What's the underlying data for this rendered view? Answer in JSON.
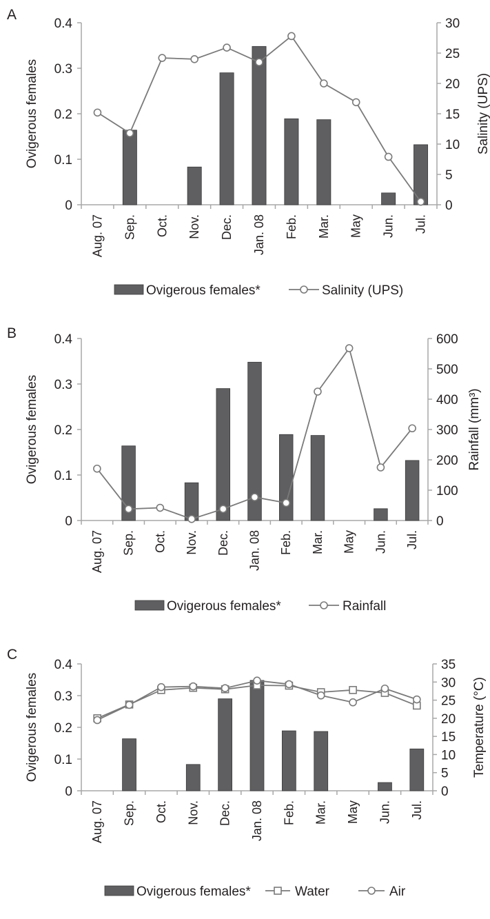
{
  "chart_data": [
    {
      "panel_label": "A",
      "type": "bar+line",
      "categories": [
        "Aug. 07",
        "Sep.",
        "Oct.",
        "Nov.",
        "Dec.",
        "Jan. 08",
        "Feb.",
        "Mar.",
        "May",
        "Jun.",
        "Jul."
      ],
      "ylabel": "Ovigerous females",
      "y2label": "Salinity (UPS)",
      "ylim": [
        0,
        0.4
      ],
      "yticks": [
        "0",
        "0.1",
        "0.2",
        "0.3",
        "0.4"
      ],
      "y2lim": [
        0,
        30
      ],
      "y2ticks": [
        "0",
        "5",
        "10",
        "15",
        "20",
        "25",
        "30"
      ],
      "bar_series": {
        "name": "Ovigerous females*",
        "values": [
          0,
          0.164,
          0,
          0.083,
          0.29,
          0.348,
          0.189,
          0.187,
          0,
          0.026,
          0.132
        ]
      },
      "line_series": [
        {
          "name": "Salinity (UPS)",
          "marker": "circle",
          "values": [
            15.2,
            11.8,
            24.2,
            24.0,
            25.9,
            23.5,
            27.8,
            20.0,
            16.9,
            7.9,
            0.5
          ]
        }
      ],
      "legend_position": "bottom"
    },
    {
      "panel_label": "B",
      "type": "bar+line",
      "categories": [
        "Aug. 07",
        "Sep.",
        "Oct.",
        "Nov.",
        "Dec.",
        "Jan. 08",
        "Feb.",
        "Mar.",
        "May",
        "Jun.",
        "Jul."
      ],
      "ylabel": "Ovigerous females",
      "y2label": "Rainfall (mm³)",
      "ylim": [
        0,
        0.4
      ],
      "yticks": [
        "0",
        "0.1",
        "0.2",
        "0.3",
        "0.4"
      ],
      "y2lim": [
        0,
        600
      ],
      "y2ticks": [
        "0",
        "100",
        "200",
        "300",
        "400",
        "500",
        "600"
      ],
      "bar_series": {
        "name": "Ovigerous females*",
        "values": [
          0,
          0.164,
          0,
          0.083,
          0.29,
          0.348,
          0.189,
          0.187,
          0,
          0.026,
          0.132
        ]
      },
      "line_series": [
        {
          "name": "Rainfall",
          "marker": "circle",
          "values": [
            171,
            38,
            42,
            5,
            38,
            77,
            58,
            425,
            568,
            175,
            304
          ]
        }
      ],
      "legend_position": "bottom"
    },
    {
      "panel_label": "C",
      "type": "bar+line",
      "categories": [
        "Aug. 07",
        "Sep.",
        "Oct.",
        "Nov.",
        "Dec.",
        "Jan. 08",
        "Feb.",
        "Mar.",
        "May",
        "Jun.",
        "Jul."
      ],
      "ylabel": "Ovigerous females",
      "y2label": "Temperature (°C)",
      "ylim": [
        0,
        0.4
      ],
      "yticks": [
        "0",
        "0.1",
        "0.2",
        "0.3",
        "0.4"
      ],
      "y2lim": [
        0,
        35
      ],
      "y2ticks": [
        "0",
        "5",
        "10",
        "15",
        "20",
        "25",
        "30",
        "35"
      ],
      "bar_series": {
        "name": "Ovigerous females*",
        "values": [
          0,
          0.164,
          0,
          0.083,
          0.29,
          0.348,
          0.189,
          0.187,
          0,
          0.026,
          0.132
        ]
      },
      "line_series": [
        {
          "name": "Water",
          "marker": "square",
          "values": [
            20.0,
            23.8,
            27.8,
            28.4,
            28.0,
            29.1,
            29.0,
            27.2,
            27.8,
            27.0,
            23.5
          ]
        },
        {
          "name": "Air",
          "marker": "circle",
          "values": [
            19.5,
            23.7,
            28.6,
            28.8,
            28.3,
            30.4,
            29.4,
            26.3,
            24.4,
            28.2,
            25.2
          ]
        }
      ],
      "legend_position": "bottom"
    }
  ]
}
